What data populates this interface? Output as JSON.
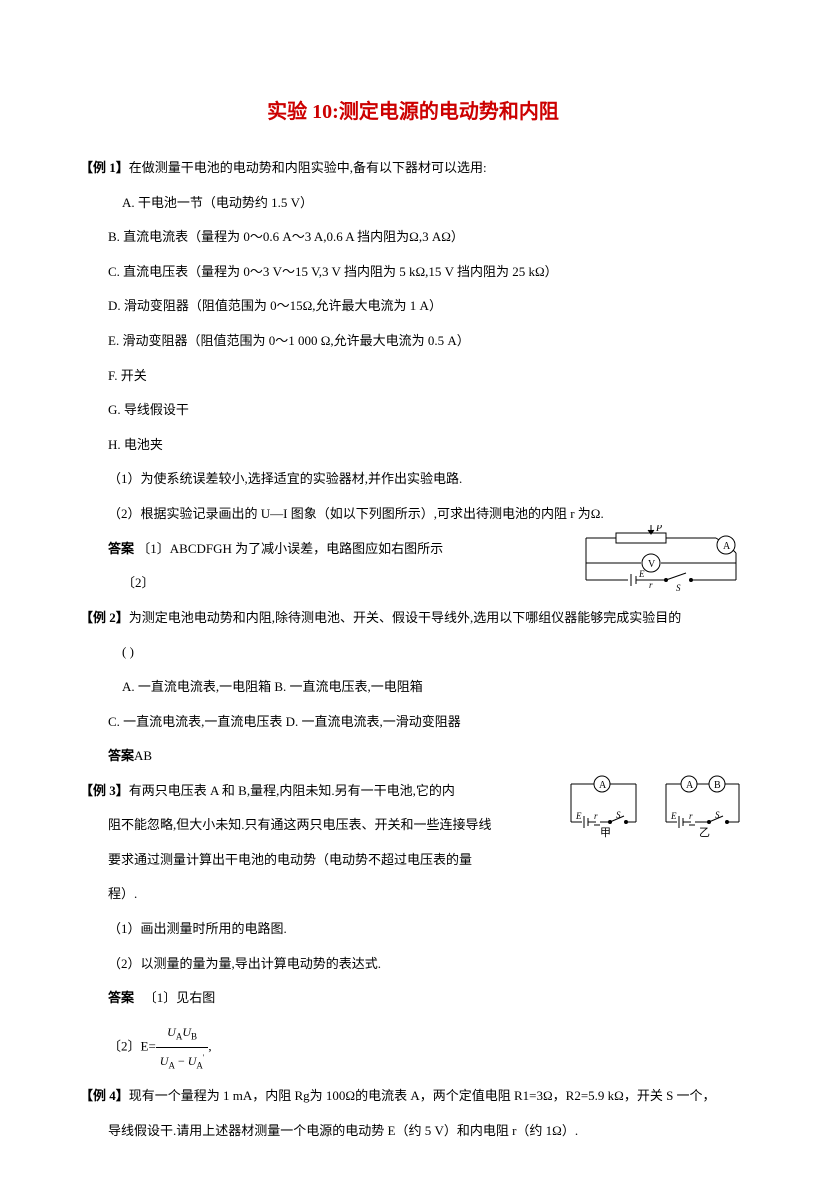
{
  "title": {
    "text": "实验 10:测定电源的电动势和内阻",
    "color": "#cc0000"
  },
  "ex1": {
    "heading": "【例 1】在做测量干电池的电动势和内阻实验中,备有以下器材可以选用:",
    "items": {
      "A": "A. 干电池一节（电动势约 1.5 V）",
      "B": "B. 直流电流表（量程为 0～0.6 A～3 A,0.6 A 挡内阻为Ω,3 AΩ）",
      "C": "C. 直流电压表（量程为 0～3 V～15 V,3 V 挡内阻为 5 kΩ,15 V 挡内阻为 25 kΩ）",
      "D": "D. 滑动变阻器（阻值范围为 0～15Ω,允许最大电流为 1 A）",
      "E": "E. 滑动变阻器（阻值范围为 0～1 000 Ω,允许最大电流为 0.5 A）",
      "F": "F. 开关",
      "G": "G. 导线假设干",
      "H": "H. 电池夹"
    },
    "q1": "（1）为使系统误差较小,选择适宜的实验器材,并作出实验电路.",
    "q2": "（2）根据实验记录画出的 U—I 图象（如以下列图所示）,可求出待测电池的内阻 r 为Ω.",
    "ans_label": "答案",
    "ans1": "〔1〕ABCDFGH 为了减小误差，电路图应如右图所示",
    "ans2": "〔2〕"
  },
  "ex2": {
    "heading": "【例 2】为测定电池电动势和内阻,除待测电池、开关、假设干导线外,选用以下哪组仪器能够完成实验目的",
    "paren": "(        )",
    "optA": "A. 一直流电流表,一电阻箱 B. 一直流电压表,一电阻箱",
    "optC": "C. 一直流电流表,一直流电压表 D. 一直流电流表,一滑动变阻器",
    "ans_label": "答案",
    "ans": "AB"
  },
  "ex3": {
    "heading": "【例 3】有两只电压表 A 和 B,量程,内阻未知.另有一干电池,它的内",
    "line2": "阻不能忽略,但大小未知.只有通这两只电压表、开关和一些连接导线",
    "line3": "要求通过测量计算出干电池的电动势（电动势不超过电压表的量",
    "line4": "程）.",
    "q1": "（1）画出测量时所用的电路图.",
    "q2": "（2）以测量的量为量,导出计算电动势的表达式.",
    "ans_label": "答案",
    "ans1": "〔1〕见右图",
    "ans2_prefix": "〔2〕E="
  },
  "ex4": {
    "heading": "【例 4】现有一个量程为 1 mA，内阻 Rg为 100Ω的电流表 A，两个定值电阻 R1=3Ω，R2=5.9 kΩ，开关 S 一个，",
    "line2": "导线假设干.请用上述器材测量一个电源的电动势 E（约 5 V）和内电阻 r（约 1Ω）."
  },
  "diagram1": {
    "labels": {
      "P": "P",
      "A": "A",
      "V": "V",
      "E": "E",
      "r": "r",
      "S": "S"
    },
    "stroke": "#000000"
  },
  "diagram2": {
    "labels": {
      "A": "A",
      "B": "B",
      "E": "E",
      "r": "r",
      "S": "S",
      "jia": "甲",
      "yi": "乙"
    },
    "stroke": "#000000"
  }
}
